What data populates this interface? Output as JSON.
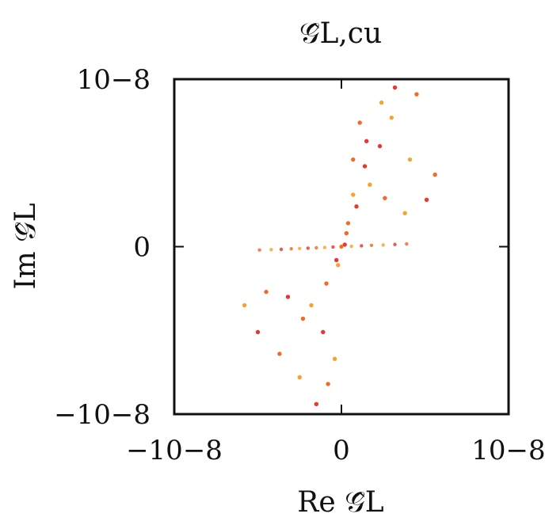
{
  "chart_data": {
    "type": "scatter",
    "title": "𝒢̂L,cu",
    "xlabel": "Re 𝒢̂L",
    "ylabel": "Im 𝒢̂L",
    "xlim": [
      -1e-08,
      1e-08
    ],
    "ylim": [
      -1e-08,
      1e-08
    ],
    "x_ticks": [
      {
        "value": -1e-08,
        "label": "−10−8"
      },
      {
        "value": 0,
        "label": "0"
      },
      {
        "value": 1e-08,
        "label": "10−8"
      }
    ],
    "y_ticks": [
      {
        "value": -1e-08,
        "label": "−10−8"
      },
      {
        "value": 0,
        "label": "0"
      },
      {
        "value": 1e-08,
        "label": "10−8"
      }
    ],
    "grid": false,
    "legend": "none",
    "colors": {
      "primary": "#e5211a",
      "secondary": "#f05a12",
      "tertiary": "#f39a16"
    },
    "series": [
      {
        "points": [
          [
            2e-10,
            1.2e-10
          ],
          [
            4e-10,
            1.4e-09
          ],
          [
            7e-10,
            3.1e-09
          ],
          [
            1.4e-09,
            4.8e-09
          ],
          [
            2.6e-09,
            2.9e-09
          ],
          [
            3.8e-09,
            2e-09
          ],
          [
            5.1e-09,
            2.8e-09
          ],
          [
            5.6e-09,
            4.3e-09
          ],
          [
            4.1e-09,
            5.2e-09
          ],
          [
            2.3e-09,
            6e-09
          ],
          [
            1.1e-09,
            7.4e-09
          ],
          [
            2.4e-09,
            8.6e-09
          ],
          [
            3.2e-09,
            9.5e-09
          ],
          [
            4.5e-09,
            9.1e-09
          ],
          [
            3e-09,
            7.7e-09
          ],
          [
            1.5e-09,
            6.3e-09
          ],
          [
            7e-10,
            5.2e-09
          ],
          [
            1.7e-09,
            3.7e-09
          ],
          [
            9e-10,
            2.4e-09
          ],
          [
            3e-10,
            8e-10
          ],
          [
            0.0,
            0.0
          ],
          [
            -3e-10,
            -8e-10
          ],
          [
            -9e-10,
            -2.2e-09
          ],
          [
            -1.8e-09,
            -3.5e-09
          ],
          [
            -3.2e-09,
            -3e-09
          ],
          [
            -4.5e-09,
            -2.7e-09
          ],
          [
            -5.8e-09,
            -3.5e-09
          ],
          [
            -5e-09,
            -5.1e-09
          ],
          [
            -3.7e-09,
            -6.4e-09
          ],
          [
            -2.5e-09,
            -7.8e-09
          ],
          [
            -1.5e-09,
            -9.4e-09
          ],
          [
            -8e-10,
            -8.2e-09
          ],
          [
            -4e-10,
            -6.7e-09
          ],
          [
            -1.1e-09,
            -5.1e-09
          ],
          [
            -2.3e-09,
            -4.3e-09
          ],
          [
            -2e-10,
            -1.1e-09
          ]
        ]
      },
      {
        "points": [
          [
            -4.9e-09,
            -2e-10
          ],
          [
            -4.2e-09,
            -1.8e-10
          ],
          [
            -3.6e-09,
            -1.6e-10
          ],
          [
            -3e-09,
            -1.3e-10
          ],
          [
            -2.5e-09,
            -1.1e-10
          ],
          [
            -2e-09,
            -9e-11
          ],
          [
            -1.5e-09,
            -7e-11
          ],
          [
            -1e-09,
            -5e-11
          ],
          [
            -5e-10,
            -2e-11
          ],
          [
            0.0,
            0.0
          ],
          [
            6e-10,
            2e-11
          ],
          [
            1.2e-09,
            5e-11
          ],
          [
            1.8e-09,
            8e-11
          ],
          [
            2.5e-09,
            1e-10
          ],
          [
            3.2e-09,
            1.3e-10
          ],
          [
            3.9e-09,
            1.6e-10
          ]
        ]
      }
    ]
  }
}
